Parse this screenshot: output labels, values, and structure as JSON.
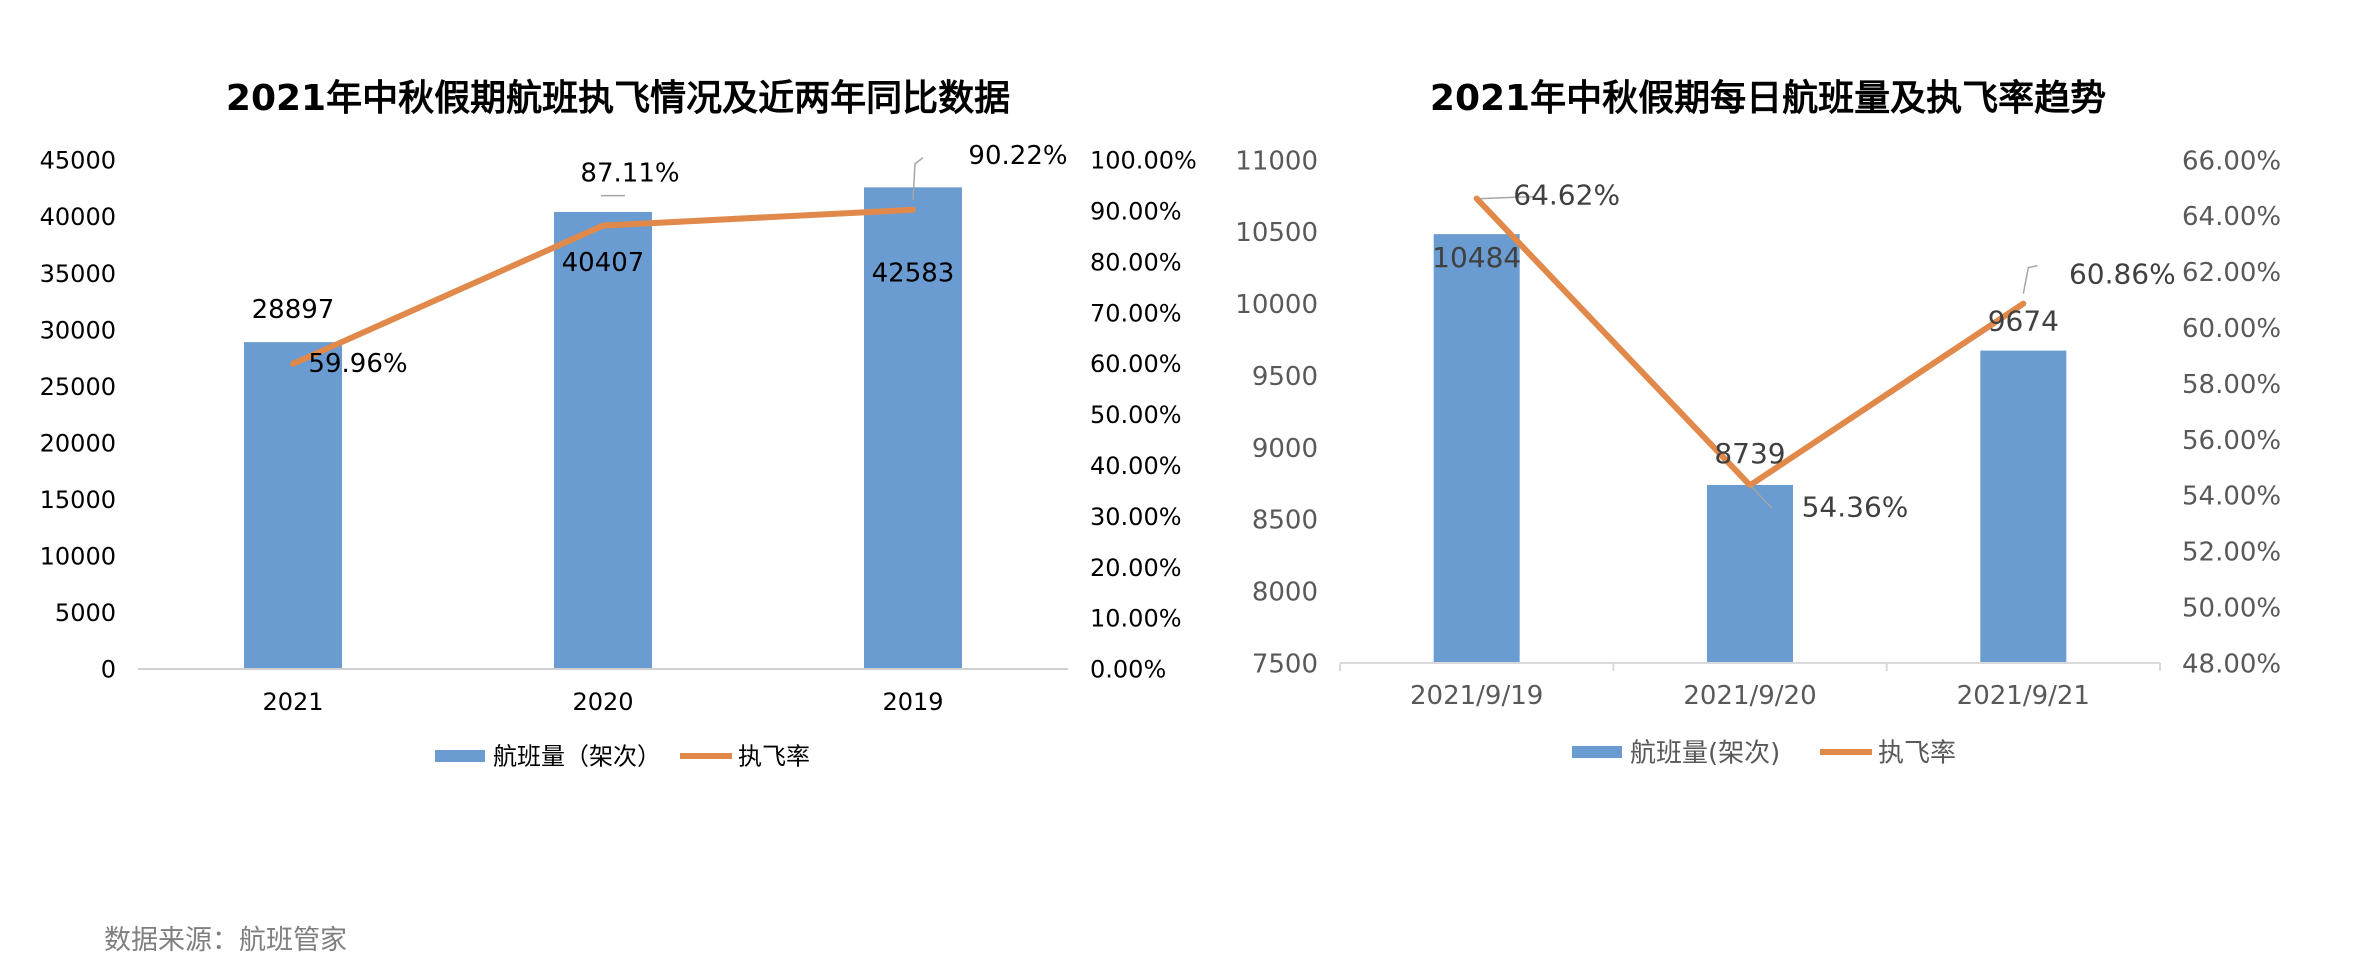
{
  "source_note": "数据来源：航班管家",
  "chart_data": [
    {
      "type": "bar",
      "title": "2021年中秋假期航班执飞情况及近两年同比数据",
      "categories": [
        "2021",
        "2020",
        "2019"
      ],
      "y_left": {
        "ticks": [
          "0",
          "5000",
          "10000",
          "15000",
          "20000",
          "25000",
          "30000",
          "35000",
          "40000",
          "45000"
        ],
        "ylim": [
          0,
          45000
        ]
      },
      "y_right": {
        "ticks": [
          "0.00%",
          "10.00%",
          "20.00%",
          "30.00%",
          "40.00%",
          "50.00%",
          "60.00%",
          "70.00%",
          "80.00%",
          "90.00%",
          "100.00%"
        ],
        "ylim": [
          0,
          100
        ]
      },
      "series": [
        {
          "name": "航班量（架次）",
          "type": "bar",
          "axis": "left",
          "color": "#6a9bd1",
          "values": [
            28897,
            40407,
            42583
          ],
          "labels": [
            "28897",
            "40407",
            "42583"
          ]
        },
        {
          "name": "执飞率",
          "type": "line",
          "axis": "right",
          "color": "#e0894b",
          "values": [
            59.96,
            87.11,
            90.22
          ],
          "labels": [
            "59.96%",
            "87.11%",
            "90.22%"
          ]
        }
      ],
      "legend": "bottom",
      "grid": false
    },
    {
      "type": "bar",
      "title": "2021年中秋假期每日航班量及执飞率趋势",
      "categories": [
        "2021/9/19",
        "2021/9/20",
        "2021/9/21"
      ],
      "y_left": {
        "ticks": [
          "7500",
          "8000",
          "8500",
          "9000",
          "9500",
          "10000",
          "10500",
          "11000"
        ],
        "ylim": [
          7500,
          11000
        ]
      },
      "y_right": {
        "ticks": [
          "48.00%",
          "50.00%",
          "52.00%",
          "54.00%",
          "56.00%",
          "58.00%",
          "60.00%",
          "62.00%",
          "64.00%",
          "66.00%"
        ],
        "ylim": [
          48,
          66
        ]
      },
      "series": [
        {
          "name": "航班量(架次)",
          "type": "bar",
          "axis": "left",
          "color": "#6a9bd1",
          "values": [
            10484,
            8739,
            9674
          ],
          "labels": [
            "10484",
            "8739",
            "9674"
          ]
        },
        {
          "name": "执飞率",
          "type": "line",
          "axis": "right",
          "color": "#e0894b",
          "values": [
            64.62,
            54.36,
            60.86
          ],
          "labels": [
            "64.62%",
            "54.36%",
            "60.86%"
          ]
        }
      ],
      "legend": "bottom",
      "grid": false
    }
  ]
}
